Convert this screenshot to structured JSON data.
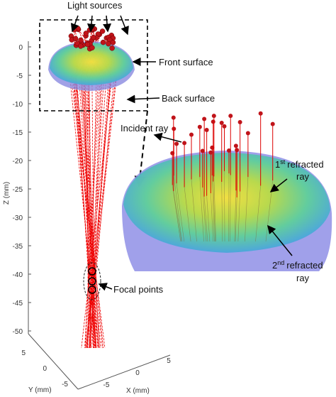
{
  "annotations": {
    "light_sources": "Light sources",
    "front_surface": "Front surface",
    "back_surface": "Back surface",
    "incident_ray": "Incident ray",
    "first_refracted": {
      "number": "1",
      "superscript": "st",
      "line1": "refracted",
      "line2": "ray"
    },
    "second_refracted": {
      "number": "2",
      "superscript": "nd",
      "line1": "refracted",
      "line2": "ray"
    },
    "focal_points": "Focal points"
  },
  "z_axis": {
    "label": "Z (mm)",
    "ticks": [
      0,
      -5,
      -10,
      -15,
      -20,
      -25,
      -30,
      -35,
      -40,
      -45,
      -50
    ]
  },
  "y_axis": {
    "label": "Y (mm)",
    "ticks": [
      5,
      0,
      -5
    ]
  },
  "x_axis": {
    "label": "X (mm)",
    "ticks": [
      -5,
      0,
      5
    ]
  }
}
